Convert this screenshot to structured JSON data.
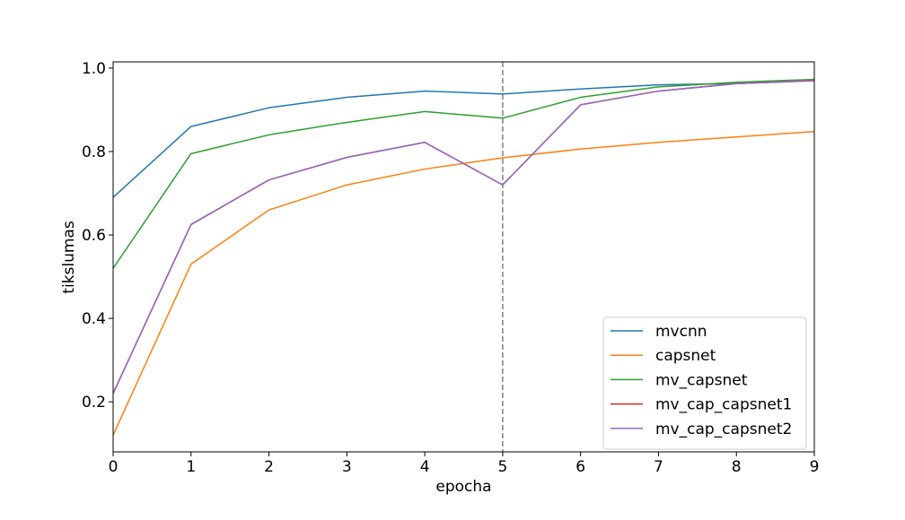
{
  "chart_data": {
    "type": "line",
    "xlabel": "epocha",
    "ylabel": "tikslumas",
    "xlim": [
      0,
      9
    ],
    "ylim": [
      0.08,
      1.015
    ],
    "x_ticks": [
      0,
      1,
      2,
      3,
      4,
      5,
      6,
      7,
      8,
      9
    ],
    "y_ticks": [
      0.2,
      0.4,
      0.6,
      0.8,
      1.0
    ],
    "y_tick_labels": [
      "0.2",
      "0.4",
      "0.6",
      "0.8",
      "1.0"
    ],
    "grid": false,
    "legend_position": "lower right",
    "vline": {
      "x": 5,
      "style": "dashed",
      "color": "#808080"
    },
    "x": [
      0,
      1,
      2,
      3,
      4,
      5,
      6,
      7,
      8,
      9
    ],
    "series": [
      {
        "name": "mvcnn",
        "color": "#1f77b4",
        "values": [
          0.69,
          0.86,
          0.905,
          0.93,
          0.945,
          0.938,
          0.95,
          0.96,
          0.963,
          0.97
        ]
      },
      {
        "name": "capsnet",
        "color": "#ff7f0e",
        "values": [
          0.12,
          0.53,
          0.66,
          0.72,
          0.758,
          0.785,
          0.806,
          0.822,
          0.835,
          0.848
        ]
      },
      {
        "name": "mv_capsnet",
        "color": "#2ca02c",
        "values": [
          0.52,
          0.795,
          0.84,
          0.87,
          0.896,
          0.88,
          0.93,
          0.955,
          0.966,
          0.973
        ]
      },
      {
        "name": "mv_cap_capsnet1",
        "color": "#d62728",
        "values": [
          0.22,
          0.625,
          0.732,
          0.786,
          0.822,
          0.72,
          0.912,
          0.945,
          0.963,
          0.97
        ]
      },
      {
        "name": "mv_cap_capsnet2",
        "color": "#9467bd",
        "values": [
          0.22,
          0.625,
          0.732,
          0.786,
          0.822,
          0.72,
          0.912,
          0.945,
          0.963,
          0.971
        ]
      }
    ]
  }
}
